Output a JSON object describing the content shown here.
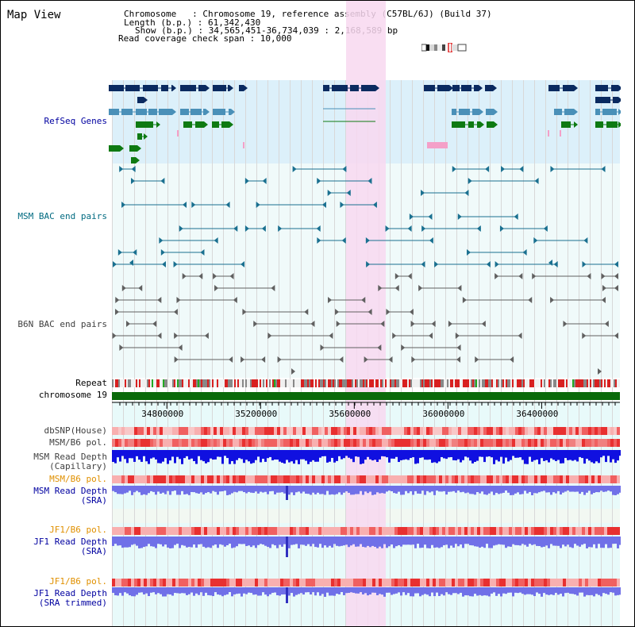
{
  "app": {
    "title": "Map View"
  },
  "header": {
    "line1": "Chromosome   : Chromosome 19, reference assembly (C57BL/6J) (Build 37)",
    "line2": "Length (b.p.) : 61,342,430",
    "line3": "Show (b.p.) : 34,565,451-36,734,039 : 2,168,589 bp",
    "line4": "Read coverage check span : 10,000"
  },
  "colors": {
    "gene_bg": "#dcf0fa",
    "track_bg": "#e8fafa",
    "highlight": "#f8d8f0",
    "refseq_dark": "#0a2a60",
    "refseq_mid": "#4a90b8",
    "refseq_green": "#0e7a12",
    "msm_bac": "#1a7090",
    "b6n_bac": "#606060",
    "repeat_red": "#d82020",
    "chromosome_green": "#0a6a0a",
    "label_blue": "#0000a0",
    "label_teal": "#006a80",
    "label_orange": "#e09000",
    "depth_blue": "#1010e0",
    "depth_light": "#7070e8"
  },
  "tracks": {
    "refseq": "RefSeq Genes",
    "msm_bac": "MSM BAC end pairs",
    "b6n_bac": "B6N BAC end pairs",
    "repeat": "Repeat",
    "chromosome": "chromosome 19",
    "dbsnp": "dbSNP(House)",
    "msm_pol1": "MSM/B6 pol.",
    "msm_depth_cap_1": "MSM Read Depth",
    "msm_depth_cap_2": "(Capillary)",
    "msm_pol2": "MSM/B6 pol.",
    "msm_depth_sra_1": "MSM Read Depth",
    "msm_depth_sra_2": "(SRA)",
    "jf1_pol1": "JF1/B6 pol.",
    "jf1_depth_1": "JF1 Read Depth",
    "jf1_depth_2": "(SRA)",
    "jf1_pol2": "JF1/B6 pol.",
    "jf1_depth_tr_1": "JF1 Read Depth",
    "jf1_depth_tr_2": "(SRA trimmed)"
  },
  "ruler": {
    "ticks": [
      "34800000",
      "35200000",
      "35600000",
      "36000000",
      "36400000"
    ],
    "tick_values": [
      34800000,
      35200000,
      35600000,
      36000000,
      36400000
    ],
    "start": 34565451,
    "end": 36734039
  }
}
